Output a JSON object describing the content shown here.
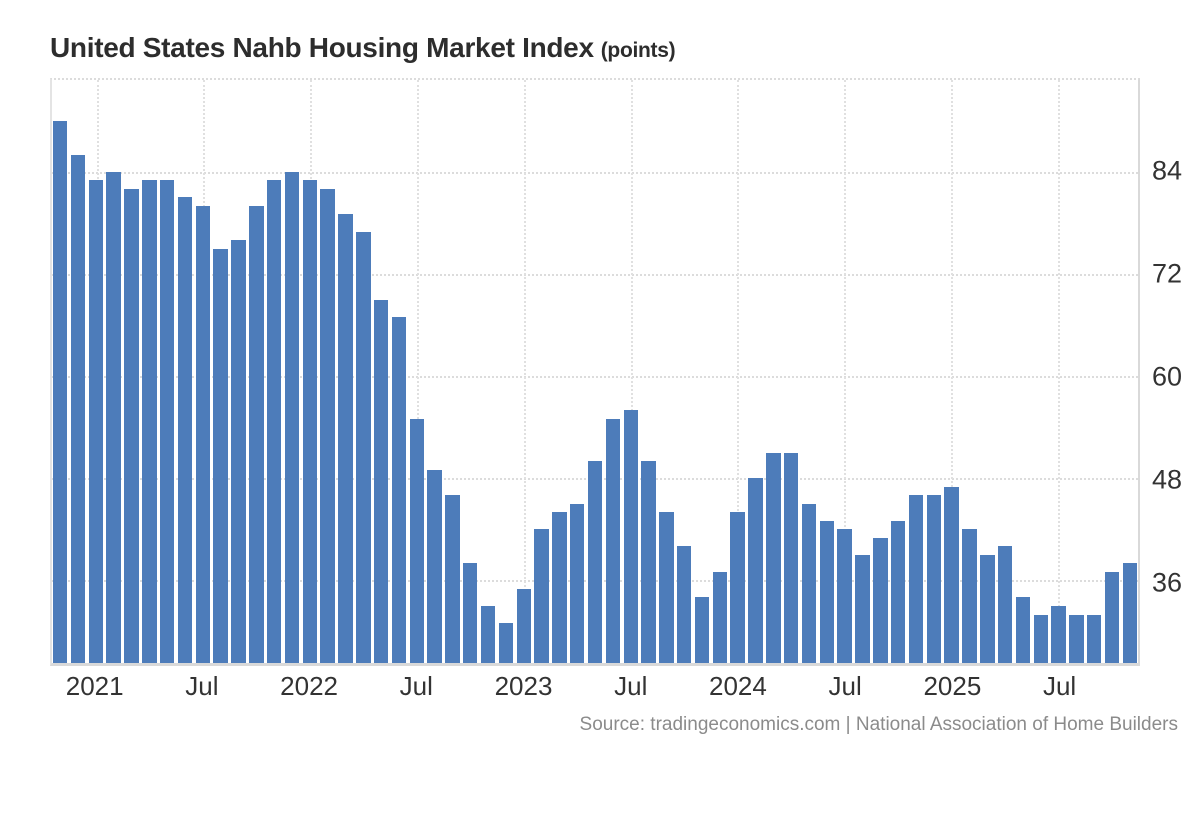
{
  "header": {
    "title": "United States Nahb Housing Market Index",
    "unit": "(points)"
  },
  "footer": {
    "source_text": "Source: tradingeconomics.com | National Association of Home Builders"
  },
  "colors": {
    "bar": "#4d7cba",
    "grid_dotted": "#dcdcdc",
    "axis_line": "#d9d9d9",
    "tick_label": "#333333",
    "title_text": "#2d2d2d",
    "source_text": "#8b8b8b"
  },
  "chart_data": {
    "type": "bar",
    "title": "United States Nahb Housing Market Index",
    "ylabel": "points",
    "ylim": [
      26.3,
      94.8
    ],
    "yticks": [
      84,
      72,
      60,
      48,
      36
    ],
    "grid": true,
    "legend": "none",
    "x": [
      "Nov 2020",
      "Dec 2020",
      "Jan 2021",
      "Feb 2021",
      "Mar 2021",
      "Apr 2021",
      "May 2021",
      "Jun 2021",
      "Jul 2021",
      "Aug 2021",
      "Sep 2021",
      "Oct 2021",
      "Nov 2021",
      "Dec 2021",
      "Jan 2022",
      "Feb 2022",
      "Mar 2022",
      "Apr 2022",
      "May 2022",
      "Jun 2022",
      "Jul 2022",
      "Aug 2022",
      "Sep 2022",
      "Oct 2022",
      "Nov 2022",
      "Dec 2022",
      "Jan 2023",
      "Feb 2023",
      "Mar 2023",
      "Apr 2023",
      "May 2023",
      "Jun 2023",
      "Jul 2023",
      "Aug 2023",
      "Sep 2023",
      "Oct 2023",
      "Nov 2023",
      "Dec 2023",
      "Jan 2024",
      "Feb 2024",
      "Mar 2024",
      "Apr 2024",
      "May 2024",
      "Jun 2024",
      "Jul 2024",
      "Aug 2024",
      "Sep 2024",
      "Oct 2024",
      "Nov 2024",
      "Dec 2024",
      "Jan 2025",
      "Feb 2025",
      "Mar 2025",
      "Apr 2025",
      "May 2025",
      "Jun 2025",
      "Jul 2025",
      "Aug 2025",
      "Sep 2025",
      "Oct 2025",
      "Nov 2025"
    ],
    "values": [
      90,
      86,
      83,
      84,
      82,
      83,
      83,
      81,
      80,
      75,
      76,
      80,
      83,
      84,
      83,
      82,
      79,
      77,
      69,
      67,
      55,
      49,
      46,
      38,
      33,
      31,
      35,
      42,
      44,
      45,
      50,
      55,
      56,
      50,
      44,
      40,
      34,
      37,
      44,
      48,
      51,
      51,
      45,
      43,
      42,
      39,
      41,
      43,
      46,
      46,
      47,
      42,
      39,
      40,
      34,
      32,
      33,
      32,
      32,
      37,
      38
    ],
    "x_ticks": [
      {
        "index": 2,
        "label": "2021"
      },
      {
        "index": 8,
        "label": "Jul"
      },
      {
        "index": 14,
        "label": "2022"
      },
      {
        "index": 20,
        "label": "Jul"
      },
      {
        "index": 26,
        "label": "2023"
      },
      {
        "index": 32,
        "label": "Jul"
      },
      {
        "index": 38,
        "label": "2024"
      },
      {
        "index": 44,
        "label": "Jul"
      },
      {
        "index": 50,
        "label": "2025"
      },
      {
        "index": 56,
        "label": "Jul"
      }
    ]
  }
}
